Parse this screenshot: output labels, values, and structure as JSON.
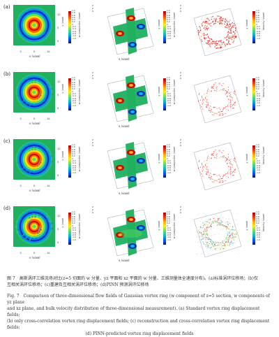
{
  "rows": [
    {
      "letter": "(a)",
      "variant": "standard"
    },
    {
      "letter": "(b)",
      "variant": "cross"
    },
    {
      "letter": "(c)",
      "variant": "recon"
    },
    {
      "letter": "(d)",
      "variant": "pinn"
    }
  ],
  "panel1": {
    "x_label": "x /voxel",
    "y_label": "y /voxel",
    "x_ticks": [
      "0",
      "5",
      "10"
    ],
    "y_ticks": [
      "0",
      "5",
      "10"
    ],
    "cbar_title": "w component /voxel"
  },
  "panel2": {
    "axis_x": "x",
    "axis_y": "y",
    "axis_z": "z",
    "x_label": "x /voxel",
    "y_label": "y /voxel",
    "cbar_title": "w component /voxel"
  },
  "panel3": {
    "axis_x": "x",
    "axis_y": "y",
    "axis_z": "z",
    "y_label": "y /voxel",
    "cbar_title": "Velocity /voxel"
  },
  "cbar_ticks": [
    "1.2",
    "1.0",
    "0.8",
    "0.6",
    "0.4",
    "0.2",
    "0",
    "-0.2",
    "-0.4",
    "-0.6",
    "-0.8",
    "-1.0",
    "-1.2"
  ],
  "caption": {
    "cn_line1": "图 7　高斯涡环三维流场对比(z=5 切面的 w 分量、yz 平面和 xz 平面的 w 分量、三维测量体全速度分布)。(a)标准涡环位移场；(b)仅",
    "cn_line2": "互相关涡环位移场；(c)重建及互相关涡环位移场；(d)PINN 预测涡环位移场",
    "en_line1": "Fig. 7　Comparison of three-dimensional flow fields of Gaussian vortex ring (w component of z=5 section, w components of yz plane",
    "en_line2": "and xz plane, and bulk velocity distribution of three-dimensional measurement). (a) Standard vortex ring displacement fields;",
    "en_line3": "(b) only cross-correlation vortex ring displacement fields; (c) reconstruction and cross-correlation vortex ring displacement fields;",
    "en_line4": "(d) PINN-predicted vortex ring displacement fields"
  }
}
